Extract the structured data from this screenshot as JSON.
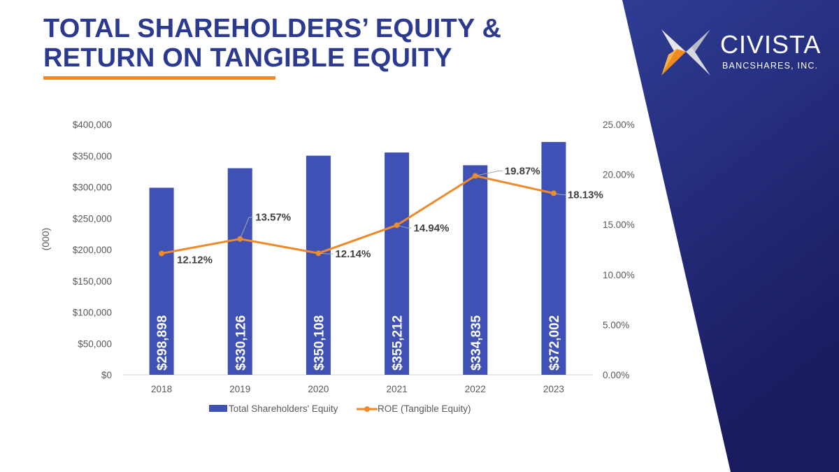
{
  "slide": {
    "title_line1": "TOTAL SHAREHOLDERS’ EQUITY &",
    "title_line2": "RETURN ON TANGIBLE EQUITY",
    "colors": {
      "title": "#2b3a8f",
      "accent": "#ee8a2a",
      "panel": "#27337f"
    }
  },
  "logo": {
    "name": "CIVISTA",
    "subtitle": "BANCSHARES, INC.",
    "icon": "civista-star-logo"
  },
  "chart_data": {
    "type": "bar",
    "categories": [
      "2018",
      "2019",
      "2020",
      "2021",
      "2022",
      "2023"
    ],
    "ylabel": "(000)",
    "y_left": {
      "min": 0,
      "max": 400000,
      "step": 50000,
      "ticks": [
        "$0",
        "$50,000",
        "$100,000",
        "$150,000",
        "$200,000",
        "$250,000",
        "$300,000",
        "$350,000",
        "$400,000"
      ]
    },
    "y_right": {
      "min": 0,
      "max": 25,
      "step": 5,
      "ticks": [
        "0.00%",
        "5.00%",
        "10.00%",
        "15.00%",
        "20.00%",
        "25.00%"
      ]
    },
    "series": [
      {
        "name": "Total Shareholders' Equity",
        "kind": "bar",
        "axis": "left",
        "color": "#3f51b5",
        "values": [
          298898,
          330126,
          350108,
          355212,
          334835,
          372002
        ],
        "labels": [
          "$298,898",
          "$330,126",
          "$350,108",
          "$355,212",
          "$334,835",
          "$372,002"
        ]
      },
      {
        "name": "ROE (Tangible Equity)",
        "kind": "line",
        "axis": "right",
        "color": "#ee8a2a",
        "values": [
          12.12,
          13.57,
          12.14,
          14.94,
          19.87,
          18.13
        ],
        "labels": [
          "12.12%",
          "13.57%",
          "12.14%",
          "14.94%",
          "19.87%",
          "18.13%"
        ]
      }
    ],
    "grid": false,
    "legend": "bottom"
  }
}
